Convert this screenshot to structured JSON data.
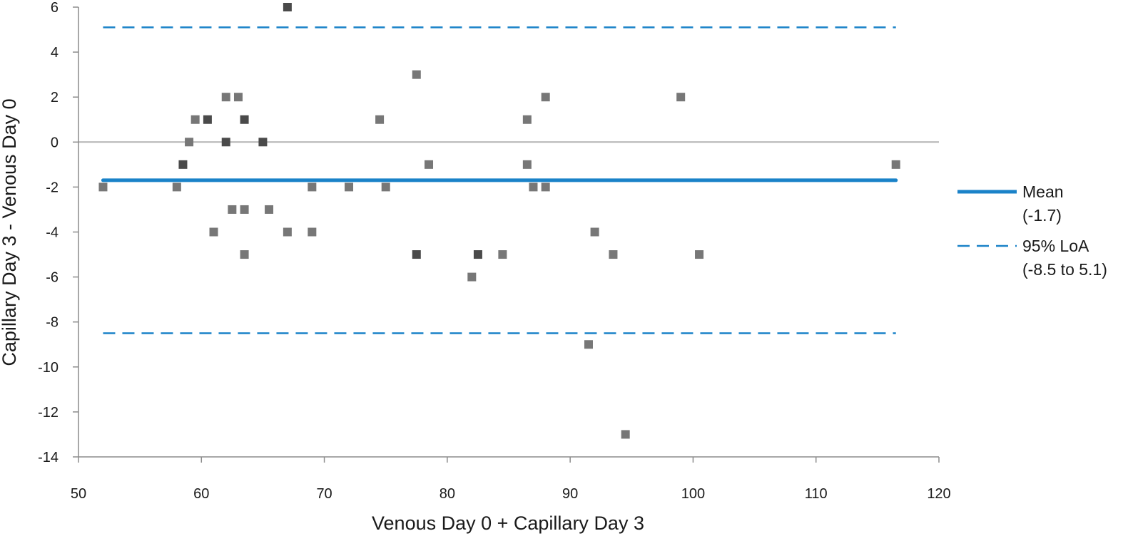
{
  "chart_data": {
    "type": "scatter",
    "title": "",
    "xlabel": "Venous Day 0 + Capillary Day 3",
    "ylabel": "Capillary Day 3 - Venous Day 0",
    "xlim": [
      50,
      120
    ],
    "ylim": [
      -14,
      6
    ],
    "xticks": [
      50,
      60,
      70,
      80,
      90,
      100,
      110,
      120
    ],
    "yticks": [
      6,
      4,
      2,
      0,
      -2,
      -4,
      -6,
      -8,
      -10,
      -12,
      -14
    ],
    "xtick_labels": [
      "50",
      "60",
      "70",
      "80",
      "90",
      "100",
      "110",
      "120"
    ],
    "ytick_labels": [
      "6",
      "4",
      "2",
      "0",
      "-2",
      "-4",
      "-6",
      "-8",
      "-10",
      "-12",
      "-14"
    ],
    "zero_line": 0,
    "grid": false,
    "colors": {
      "point": "#777777",
      "point_dark": "#4a4a4a",
      "line": "#1a82c8",
      "zero": "#b3b3b3",
      "axis": "#8c8c8c"
    },
    "mean": {
      "value": -1.7,
      "x_start": 52,
      "x_end": 116.5
    },
    "loa": {
      "lower": -8.5,
      "upper": 5.1,
      "x_start": 52,
      "x_end": 116.5
    },
    "legend": {
      "position": "right",
      "entries": [
        {
          "style": "solid",
          "line1": "Mean",
          "line2": "(-1.7)"
        },
        {
          "style": "dashed",
          "line1": "95% LoA",
          "line2": "(-8.5 to 5.1)"
        }
      ]
    },
    "points": [
      {
        "x": 52,
        "y": -2,
        "dark": false
      },
      {
        "x": 58,
        "y": -2,
        "dark": false
      },
      {
        "x": 58.5,
        "y": -1,
        "dark": true
      },
      {
        "x": 59,
        "y": 0,
        "dark": false
      },
      {
        "x": 59.5,
        "y": 1,
        "dark": false
      },
      {
        "x": 60.5,
        "y": 1,
        "dark": true
      },
      {
        "x": 61,
        "y": -4,
        "dark": false
      },
      {
        "x": 62,
        "y": 2,
        "dark": false
      },
      {
        "x": 62,
        "y": 0,
        "dark": true
      },
      {
        "x": 62.5,
        "y": -3,
        "dark": false
      },
      {
        "x": 63,
        "y": 2,
        "dark": false
      },
      {
        "x": 63.5,
        "y": 1,
        "dark": true
      },
      {
        "x": 63.5,
        "y": -3,
        "dark": false
      },
      {
        "x": 63.5,
        "y": -5,
        "dark": false
      },
      {
        "x": 65,
        "y": 0,
        "dark": true
      },
      {
        "x": 65.5,
        "y": -3,
        "dark": false
      },
      {
        "x": 67,
        "y": 6,
        "dark": true
      },
      {
        "x": 67,
        "y": -4,
        "dark": false
      },
      {
        "x": 69,
        "y": -2,
        "dark": false
      },
      {
        "x": 69,
        "y": -4,
        "dark": false
      },
      {
        "x": 72,
        "y": -2,
        "dark": false
      },
      {
        "x": 74.5,
        "y": 1,
        "dark": false
      },
      {
        "x": 75,
        "y": -2,
        "dark": false
      },
      {
        "x": 77.5,
        "y": 3,
        "dark": false
      },
      {
        "x": 77.5,
        "y": -5,
        "dark": true
      },
      {
        "x": 78.5,
        "y": -1,
        "dark": false
      },
      {
        "x": 82,
        "y": -6,
        "dark": false
      },
      {
        "x": 82.5,
        "y": -5,
        "dark": true
      },
      {
        "x": 84.5,
        "y": -5,
        "dark": false
      },
      {
        "x": 86.5,
        "y": 1,
        "dark": false
      },
      {
        "x": 86.5,
        "y": -1,
        "dark": false
      },
      {
        "x": 87,
        "y": -2,
        "dark": false
      },
      {
        "x": 88,
        "y": 2,
        "dark": false
      },
      {
        "x": 88,
        "y": -2,
        "dark": false
      },
      {
        "x": 91.5,
        "y": -9,
        "dark": false
      },
      {
        "x": 92,
        "y": -4,
        "dark": false
      },
      {
        "x": 93.5,
        "y": -5,
        "dark": false
      },
      {
        "x": 94.5,
        "y": -13,
        "dark": false
      },
      {
        "x": 99,
        "y": 2,
        "dark": false
      },
      {
        "x": 100.5,
        "y": -5,
        "dark": false
      },
      {
        "x": 116.5,
        "y": -1,
        "dark": false
      }
    ]
  }
}
